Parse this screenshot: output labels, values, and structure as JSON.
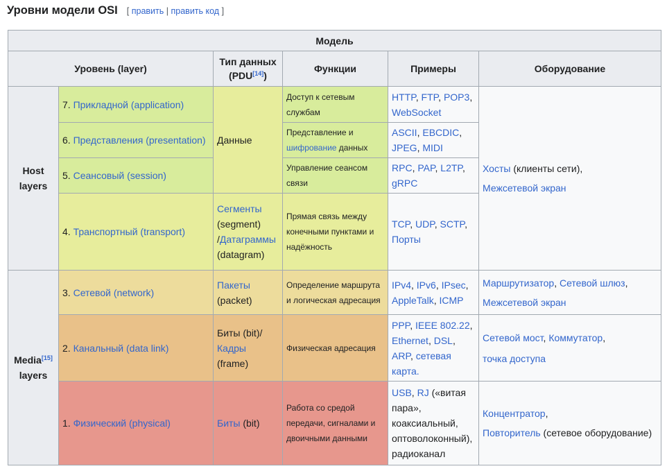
{
  "heading": {
    "title": "Уровни модели OSI",
    "bracket_open": "[",
    "edit": "править",
    "separator": "|",
    "edit_code": "править код",
    "bracket_close": "]"
  },
  "table": {
    "caption_row": "Модель",
    "headers": {
      "layer": "Уровень (layer)",
      "pdu_line1": "Тип данных",
      "pdu_line2_pre": "(PDU",
      "pdu_ref": "[14]",
      "pdu_line2_post": ")",
      "functions": "Функции",
      "examples": "Примеры",
      "hardware": "Оборудование"
    },
    "groups": {
      "host_line1": "Host",
      "host_line2": "layers",
      "media_line1": "Media",
      "media_ref": "[15]",
      "media_line2": "layers"
    },
    "rows": [
      {
        "num": "7.",
        "name": "Прикладной (application)",
        "func": "Доступ к сетевым службам",
        "examples": [
          [
            "HTTP",
            true
          ],
          [
            ", ",
            false
          ],
          [
            "FTP",
            true
          ],
          [
            ", ",
            false
          ],
          [
            "POP3",
            true
          ],
          [
            ", ",
            false
          ],
          [
            "WebSocket",
            true
          ]
        ]
      },
      {
        "num": "6.",
        "name": "Представления (presentation)",
        "func_pre": "Представление и ",
        "func_link": "шифрование",
        "func_post": " данных",
        "examples": [
          [
            "ASCII",
            true
          ],
          [
            ", ",
            false
          ],
          [
            "EBCDIC",
            true
          ],
          [
            ", ",
            false
          ],
          [
            "JPEG",
            true
          ],
          [
            ", ",
            false
          ],
          [
            "MIDI",
            true
          ]
        ]
      },
      {
        "num": "5.",
        "name": "Сеансовый (session)",
        "func": "Управление сеансом связи",
        "examples": [
          [
            "RPC",
            true
          ],
          [
            ", ",
            false
          ],
          [
            "PAP",
            true
          ],
          [
            ", ",
            false
          ],
          [
            "L2TP",
            true
          ],
          [
            ", ",
            false
          ],
          [
            "gRPC",
            true
          ]
        ]
      },
      {
        "num": "4.",
        "name": "Транспортный (transport)",
        "func": "Прямая связь между конечными пунктами и надёжность",
        "examples": [
          [
            "TCP",
            true
          ],
          [
            ", ",
            false
          ],
          [
            "UDP",
            true
          ],
          [
            ", ",
            false
          ],
          [
            "SCTP",
            true
          ],
          [
            ", ",
            false
          ],
          [
            "Порты",
            true
          ]
        ]
      },
      {
        "num": "3.",
        "name": "Сетевой (network)",
        "func": "Определение маршрута и логическая адресация",
        "examples": [
          [
            "IPv4",
            true
          ],
          [
            ", ",
            false
          ],
          [
            "IPv6",
            true
          ],
          [
            ", ",
            false
          ],
          [
            "IPsec",
            true
          ],
          [
            ", ",
            false
          ],
          [
            "AppleTalk",
            true
          ],
          [
            ", ",
            false
          ],
          [
            "ICMP",
            true
          ]
        ]
      },
      {
        "num": "2.",
        "name": "Канальный (data link)",
        "func": "Физическая адресация",
        "examples": [
          [
            "PPP",
            true
          ],
          [
            ", ",
            false
          ],
          [
            "IEEE 802.22",
            true
          ],
          [
            ", ",
            false
          ],
          [
            "Ethernet",
            true
          ],
          [
            ", ",
            false
          ],
          [
            "DSL",
            true
          ],
          [
            ", ",
            false
          ],
          [
            "ARP",
            true
          ],
          [
            ", ",
            false
          ],
          [
            "сетевая карта.",
            true
          ]
        ]
      },
      {
        "num": "1.",
        "name": "Физический (physical)",
        "func": "Работа со средой передачи, сигналами и двоичными данными",
        "examples": [
          [
            "USB",
            true
          ],
          [
            ", ",
            false
          ],
          [
            "RJ",
            true
          ],
          [
            " («витая пара», коаксиальный, оптоволоконный), радиоканал",
            false
          ]
        ]
      }
    ],
    "pdu": {
      "data": "Данные",
      "segments": "Сегменты",
      "segment_en": "(segment)",
      "slash": "/",
      "datagrams": "Датаграммы",
      "datagram_en": "(datagram)",
      "packets": "Пакеты",
      "packet_en": "(packet)",
      "bits_pre": "Биты (bit)/",
      "frames": "Кадры",
      "frame_en": "(frame)",
      "bits": "Биты",
      "bit_en": " (bit)"
    },
    "hardware": {
      "hosts_link": "Хосты",
      "hosts_text": " (клиенты сети),",
      "firewall": "Межсетевой экран",
      "router": "Маршрутизатор",
      "comma": ", ",
      "gateway": "Сетевой шлюз",
      "comma_end": ",",
      "firewall2": "Межсетевой экран",
      "bridge": "Сетевой мост",
      "switch": "Коммутатор",
      "ap": "точка доступа",
      "hub": "Концентратор",
      "repeater": "Повторитель",
      "repeater_text": " (сетевое оборудование)"
    }
  }
}
